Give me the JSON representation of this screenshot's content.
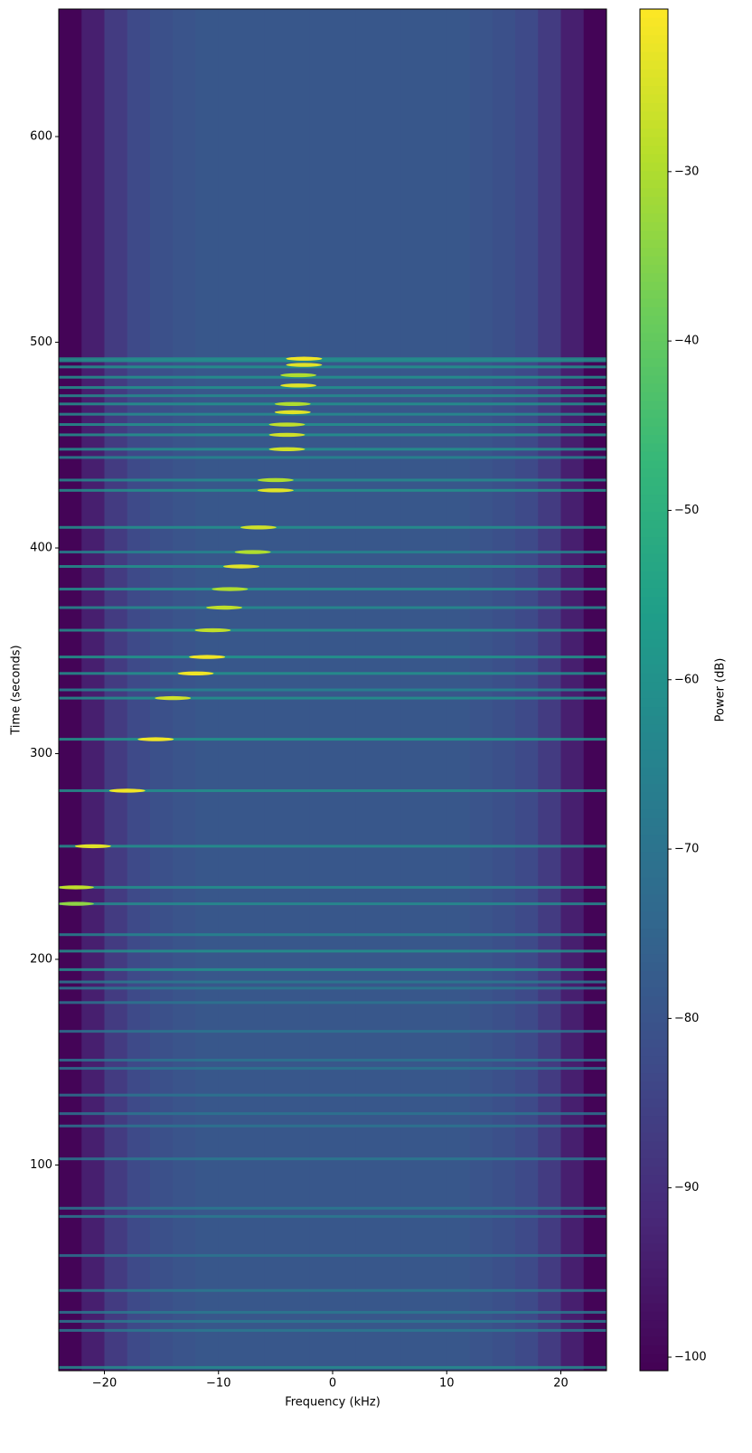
{
  "chart_data": {
    "type": "spectrogram",
    "colormap": "viridis",
    "x_label": "Frequency (kHz)",
    "y_label": "Time (seconds)",
    "colorbar_label": "Power (dB)",
    "xlim": [
      -24,
      24
    ],
    "ylim": [
      0,
      662
    ],
    "clim": [
      -100.8,
      -20.4
    ],
    "xticks": [
      {
        "value": -20,
        "label": "−20"
      },
      {
        "value": -10,
        "label": "−10"
      },
      0,
      10,
      20
    ],
    "yticks": [
      100,
      200,
      300,
      400,
      500,
      600
    ],
    "cticks": [
      {
        "value": -30,
        "label": "−30"
      },
      {
        "value": -40,
        "label": "−40"
      },
      {
        "value": -50,
        "label": "−50"
      },
      {
        "value": -60,
        "label": "−60"
      },
      {
        "value": -70,
        "label": "−70"
      },
      {
        "value": -80,
        "label": "−80"
      },
      {
        "value": -90,
        "label": "−90"
      },
      {
        "value": -100,
        "label": "−100"
      }
    ],
    "background": {
      "x": [
        -23,
        -21,
        -19,
        -17,
        -15,
        -13,
        -11,
        -9,
        -7,
        -5,
        -3,
        -1,
        1,
        3,
        5,
        7,
        9,
        11,
        13,
        15,
        17,
        19,
        21,
        23
      ],
      "values": [
        -100,
        -94,
        -87,
        -83,
        -81,
        -80,
        -79,
        -79,
        -79,
        -79,
        -79,
        -79,
        -79,
        -79,
        -79,
        -79,
        -79,
        -79,
        -80,
        -81,
        -83,
        -87,
        -94,
        -100
      ]
    },
    "lines": {
      "times": [
        1.6,
        19.6,
        24,
        28.4,
        39,
        56,
        75,
        79,
        103,
        119,
        125,
        134,
        147,
        151,
        165,
        179,
        186,
        189,
        195,
        204,
        212,
        227,
        235,
        255,
        282,
        307,
        327,
        331,
        339,
        347,
        360,
        371,
        380,
        391,
        398,
        410,
        428,
        433,
        444,
        448,
        455,
        460,
        465,
        470,
        474,
        478,
        483,
        488,
        491,
        492
      ],
      "values": [
        -62,
        -68,
        -68,
        -68,
        -68,
        -70,
        -68,
        -68,
        -68,
        -70,
        -70,
        -70,
        -70,
        -70,
        -70,
        -70,
        -68,
        -68,
        -60,
        -60,
        -64,
        -62,
        -60,
        -60,
        -60,
        -58,
        -60,
        -64,
        -60,
        -58,
        -60,
        -62,
        -60,
        -60,
        -64,
        -60,
        -60,
        -62,
        -64,
        -60,
        -60,
        -60,
        -62,
        -60,
        -62,
        -60,
        -60,
        -60,
        -60,
        -60
      ]
    },
    "peaks": {
      "times": [
        492,
        489,
        484,
        479,
        470,
        466,
        460,
        455,
        448,
        433,
        428,
        410,
        398,
        391,
        380,
        371,
        360,
        347,
        339,
        327,
        307,
        282,
        255,
        235,
        227
      ],
      "freqs": [
        -2.5,
        -2.5,
        -3,
        -3,
        -3.5,
        -3.5,
        -4,
        -4,
        -4,
        -5,
        -5,
        -6.5,
        -7,
        -8,
        -9,
        -9.5,
        -10.5,
        -11,
        -12,
        -14,
        -15.5,
        -18,
        -21,
        -22.5,
        -22.5
      ],
      "values": [
        -22,
        -24,
        -30,
        -24,
        -30,
        -24,
        -28,
        -26,
        -26,
        -30,
        -24,
        -26,
        -30,
        -24,
        -30,
        -28,
        -28,
        -22,
        -22,
        -26,
        -22,
        -22,
        -24,
        -28,
        -34
      ]
    }
  }
}
